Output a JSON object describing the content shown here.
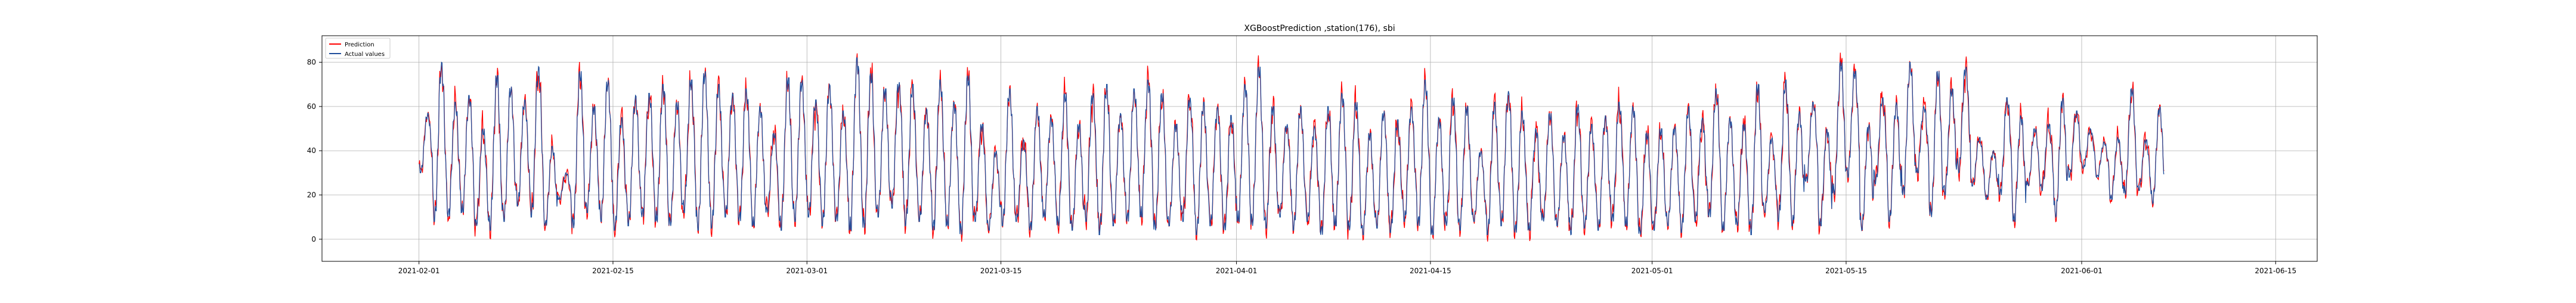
{
  "chart_data": {
    "type": "line",
    "title": "XGBoostPrediction ,station(176), sbi",
    "xlabel": "",
    "ylabel": "",
    "x_start": "2021-02-01",
    "x_end": "2021-06-11",
    "xlim": [
      "2021-01-25",
      "2021-06-18"
    ],
    "ylim": [
      -10,
      92
    ],
    "x_ticks": [
      "2021-02-01",
      "2021-02-15",
      "2021-03-01",
      "2021-03-15",
      "2021-04-01",
      "2021-04-15",
      "2021-05-01",
      "2021-05-15",
      "2021-06-01",
      "2021-06-15"
    ],
    "y_ticks": [
      0,
      20,
      40,
      60,
      80
    ],
    "grid": true,
    "legend_position": "top-left",
    "series": [
      {
        "name": "Prediction",
        "color": "#ff0000"
      },
      {
        "name": "Actual values",
        "color": "#1f4e9c"
      }
    ],
    "daily_peaks": [
      57,
      80,
      62,
      65,
      50,
      74,
      69,
      63,
      78,
      42,
      30,
      76,
      60,
      72,
      55,
      65,
      66,
      70,
      62,
      72,
      76,
      70,
      66,
      68,
      60,
      48,
      73,
      72,
      63,
      70,
      58,
      82,
      75,
      68,
      71,
      70,
      59,
      72,
      62,
      74,
      52,
      40,
      68,
      45,
      60,
      55,
      66,
      52,
      66,
      70,
      57,
      68,
      72,
      66,
      52,
      64,
      62,
      60,
      56,
      70,
      78,
      60,
      52,
      60,
      51,
      60,
      66,
      62,
      48,
      58,
      54,
      60,
      72,
      55,
      64,
      60,
      40,
      62,
      67,
      58,
      50,
      57,
      47,
      61,
      52,
      56,
      62,
      60,
      48,
      50,
      51,
      60,
      55,
      68,
      55,
      52,
      70,
      46,
      72,
      58,
      62,
      50,
      80,
      76,
      52,
      64,
      62,
      80,
      60,
      76,
      68,
      78,
      46,
      40,
      64,
      56,
      50,
      52,
      64,
      58,
      50,
      44,
      46,
      68,
      45,
      60
    ],
    "daily_troughs": [
      30,
      8,
      10,
      12,
      6,
      4,
      8,
      15,
      10,
      6,
      18,
      5,
      12,
      8,
      4,
      6,
      10,
      8,
      6,
      12,
      4,
      5,
      10,
      8,
      6,
      12,
      4,
      8,
      10,
      6,
      8,
      4,
      5,
      10,
      14,
      6,
      8,
      4,
      6,
      2,
      8,
      4,
      6,
      8,
      4,
      10,
      6,
      4,
      8,
      2,
      6,
      8,
      10,
      4,
      6,
      8,
      2,
      6,
      4,
      8,
      6,
      5,
      10,
      4,
      8,
      2,
      6,
      4,
      2,
      5,
      3,
      8,
      6,
      2,
      6,
      4,
      8,
      2,
      6,
      3,
      4,
      8,
      6,
      2,
      5,
      4,
      8,
      6,
      2,
      4,
      6,
      3,
      8,
      10,
      4,
      6,
      2,
      12,
      8,
      6,
      26,
      6,
      20,
      28,
      4,
      25,
      8,
      20,
      30,
      10,
      20,
      30,
      24,
      18,
      20,
      8,
      24,
      22,
      10,
      28,
      32,
      28,
      18,
      20,
      22,
      16
    ],
    "prediction_offsets": [
      3,
      -4,
      5,
      -2,
      6,
      -5,
      2,
      4,
      -6,
      3,
      -3,
      5,
      -4,
      2,
      6,
      -2,
      -5,
      4,
      3,
      -6,
      2,
      5,
      -3,
      4,
      -2,
      6,
      -4,
      3,
      -5,
      2,
      4,
      -3,
      6,
      -2,
      -4,
      5,
      3,
      -6,
      2,
      4,
      -5,
      3,
      -2,
      6,
      -4,
      2,
      5,
      -3,
      -6,
      4,
      3,
      -2,
      5,
      -4,
      2,
      6,
      -3,
      4,
      -5,
      2,
      3,
      -6,
      4,
      -2,
      5,
      -4,
      3,
      6,
      -3,
      2,
      -5,
      4,
      3,
      -2,
      6,
      -4,
      2,
      5,
      -3,
      4,
      -6,
      3,
      2,
      -5,
      4,
      -2,
      6,
      -3,
      5,
      -4,
      2,
      3,
      -6,
      4,
      -2,
      5,
      -4,
      3,
      6,
      -3,
      2,
      -5,
      4,
      3,
      -2,
      6,
      -4,
      2,
      5,
      -3,
      4,
      -6,
      3,
      2,
      -5,
      4,
      -2,
      6,
      -3,
      5,
      -4,
      2
    ]
  }
}
